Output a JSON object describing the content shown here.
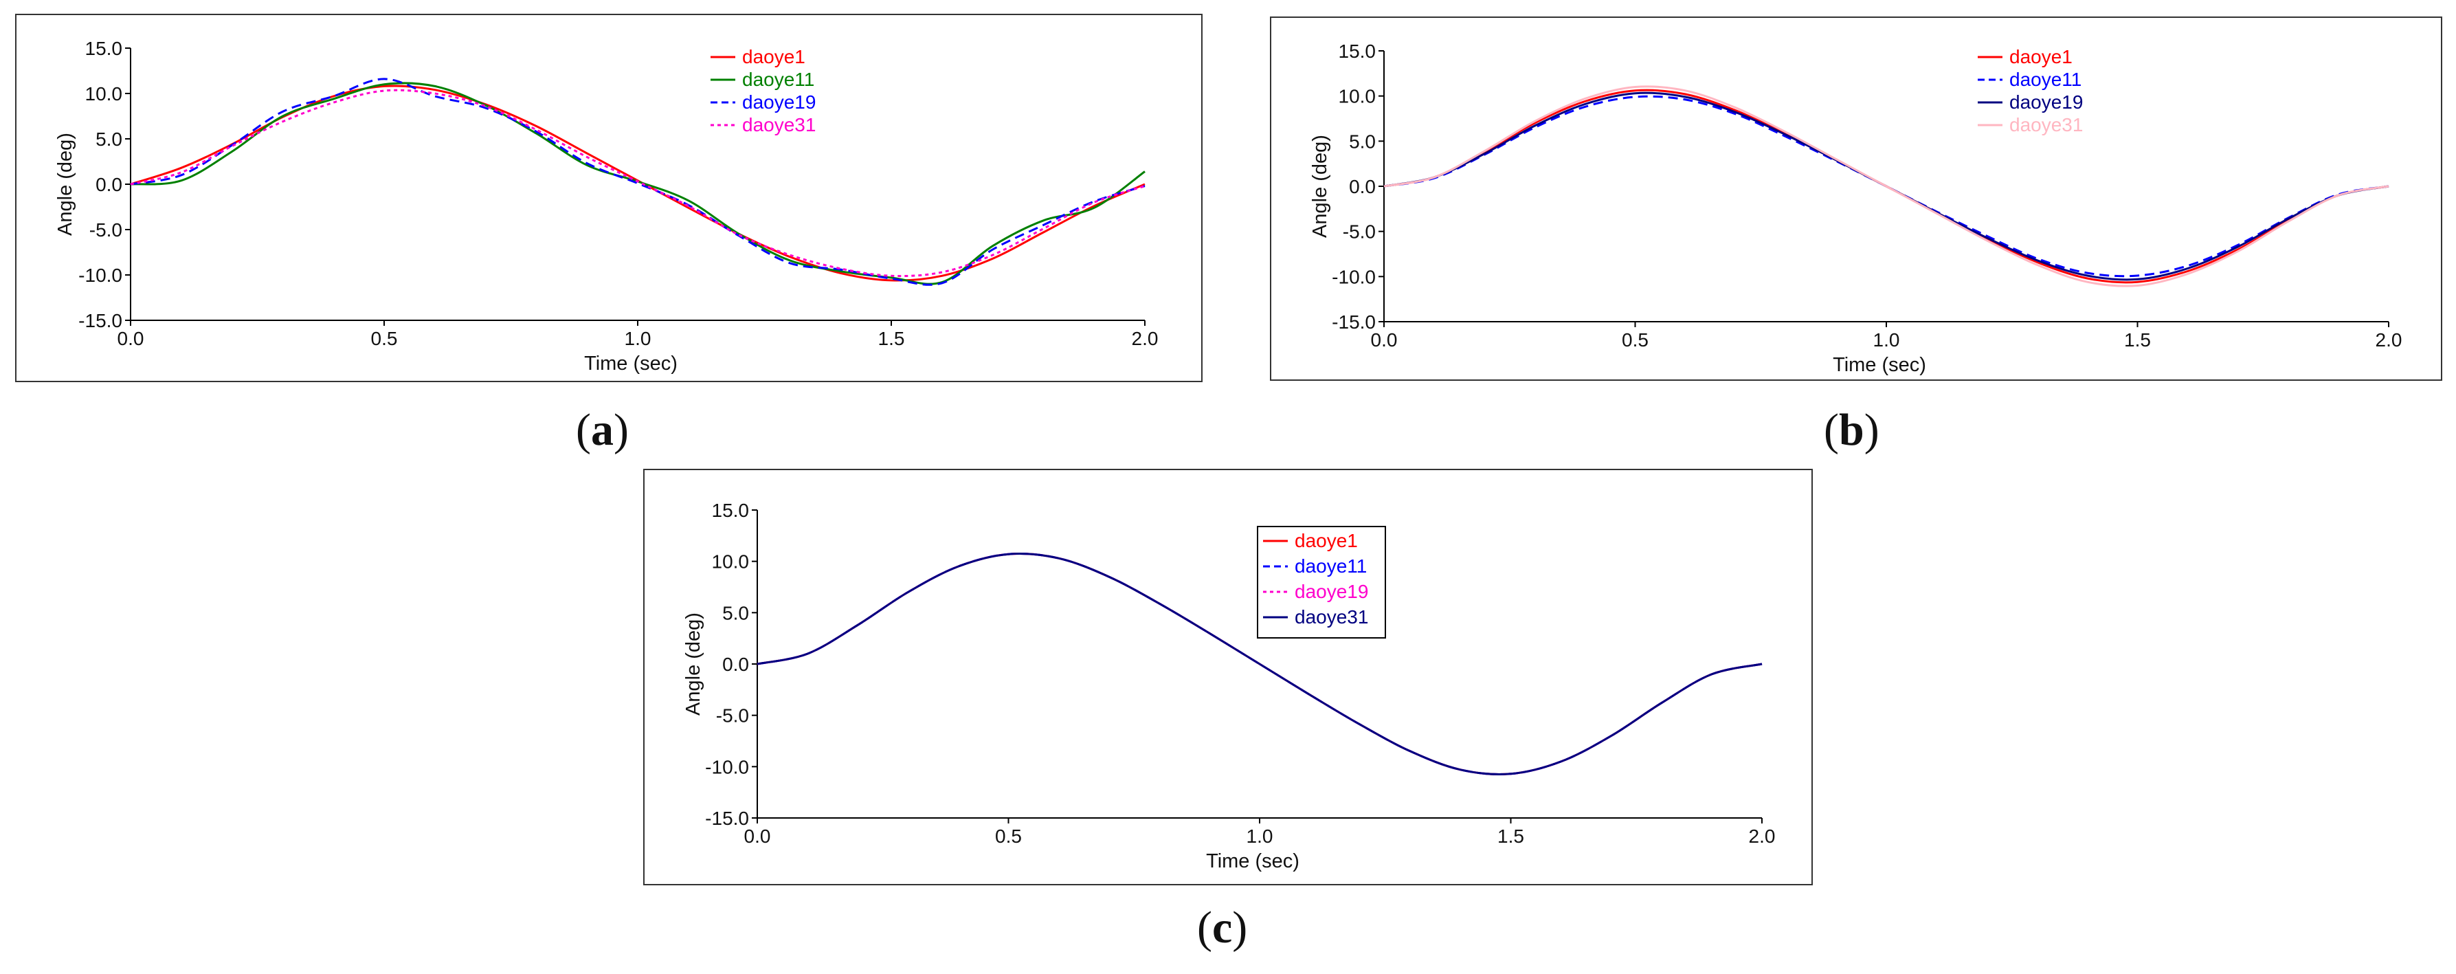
{
  "chart_data": [
    {
      "id": "a",
      "type": "line",
      "caption_label": "a",
      "xlabel": "Time (sec)",
      "ylabel": "Angle (deg)",
      "xlim": [
        0,
        2
      ],
      "ylim": [
        -15,
        15
      ],
      "x_ticks": [
        "0.0",
        "0.5",
        "1.0",
        "1.5",
        "2.0"
      ],
      "y_ticks": [
        "15.0",
        "10.0",
        "5.0",
        "0.0",
        "-5.0",
        "-10.0",
        "-15.0"
      ],
      "legend_boxed": false,
      "x": [
        0.0,
        0.1,
        0.2,
        0.3,
        0.4,
        0.5,
        0.6,
        0.7,
        0.8,
        0.9,
        1.0,
        1.1,
        1.2,
        1.3,
        1.4,
        1.5,
        1.6,
        1.7,
        1.8,
        1.9,
        2.0
      ],
      "series": [
        {
          "name": "daoye1",
          "color": "#ff0000",
          "dash": "solid",
          "values": [
            0.0,
            1.8,
            4.4,
            7.4,
            9.7,
            10.8,
            10.4,
            8.8,
            6.4,
            3.4,
            0.4,
            -2.6,
            -5.5,
            -8.0,
            -9.8,
            -10.6,
            -10.1,
            -8.2,
            -5.3,
            -2.4,
            0.0
          ]
        },
        {
          "name": "daoye11",
          "color": "#008000",
          "dash": "solid",
          "values": [
            0.0,
            0.4,
            3.6,
            7.5,
            9.4,
            11.0,
            10.8,
            8.7,
            5.6,
            2.1,
            0.3,
            -1.8,
            -5.5,
            -8.4,
            -9.6,
            -10.3,
            -10.8,
            -6.8,
            -4.0,
            -2.6,
            1.4
          ]
        },
        {
          "name": "daoye19",
          "color": "#0000ff",
          "dash": "dash",
          "values": [
            0.0,
            1.0,
            4.3,
            8.0,
            9.7,
            11.6,
            9.7,
            8.4,
            5.8,
            2.3,
            0.1,
            -2.3,
            -5.7,
            -8.7,
            -9.4,
            -10.4,
            -10.9,
            -7.2,
            -4.5,
            -1.9,
            -0.2
          ]
        },
        {
          "name": "daoye31",
          "color": "#ff00cc",
          "dash": "dot",
          "values": [
            0.0,
            1.3,
            4.2,
            6.9,
            9.0,
            10.3,
            10.0,
            8.6,
            6.0,
            3.0,
            0.3,
            -2.4,
            -5.6,
            -7.8,
            -9.3,
            -10.1,
            -9.7,
            -7.8,
            -4.9,
            -2.0,
            -0.2
          ]
        }
      ]
    },
    {
      "id": "b",
      "type": "line",
      "caption_label": "b",
      "xlabel": "Time (sec)",
      "ylabel": "Angle (deg)",
      "xlim": [
        0,
        2
      ],
      "ylim": [
        -15,
        15
      ],
      "x_ticks": [
        "0.0",
        "0.5",
        "1.0",
        "1.5",
        "2.0"
      ],
      "y_ticks": [
        "15.0",
        "10.0",
        "5.0",
        "0.0",
        "-5.0",
        "-10.0",
        "-15.0"
      ],
      "legend_boxed": false,
      "x": [
        0.0,
        0.1,
        0.2,
        0.3,
        0.4,
        0.5,
        0.6,
        0.7,
        0.8,
        0.9,
        1.0,
        1.1,
        1.2,
        1.3,
        1.4,
        1.5,
        1.6,
        1.7,
        1.8,
        1.9,
        2.0
      ],
      "series": [
        {
          "name": "daoye1",
          "color": "#ff0000",
          "dash": "solid",
          "values": [
            0.0,
            1.0,
            3.8,
            7.0,
            9.4,
            10.6,
            10.2,
            8.4,
            5.8,
            2.9,
            0.0,
            -2.9,
            -5.8,
            -8.4,
            -10.2,
            -10.6,
            -9.4,
            -7.0,
            -3.8,
            -1.0,
            0.0
          ]
        },
        {
          "name": "daoye11",
          "color": "#0000ff",
          "dash": "dash",
          "values": [
            0.0,
            0.9,
            3.5,
            6.5,
            8.8,
            9.9,
            9.6,
            8.0,
            5.5,
            2.8,
            0.0,
            -2.8,
            -5.5,
            -8.0,
            -9.6,
            -9.9,
            -8.8,
            -6.5,
            -3.5,
            -0.9,
            0.0
          ]
        },
        {
          "name": "daoye19",
          "color": "#000080",
          "dash": "solid",
          "values": [
            0.0,
            1.0,
            3.6,
            6.7,
            9.1,
            10.3,
            9.9,
            8.2,
            5.7,
            2.9,
            0.0,
            -2.9,
            -5.7,
            -8.2,
            -9.9,
            -10.3,
            -9.1,
            -6.7,
            -3.6,
            -1.0,
            0.0
          ]
        },
        {
          "name": "daoye31",
          "color": "#ffb6c1",
          "dash": "solid",
          "values": [
            0.0,
            1.0,
            3.9,
            7.2,
            9.7,
            11.0,
            10.6,
            8.7,
            6.0,
            3.0,
            0.0,
            -3.0,
            -6.0,
            -8.7,
            -10.6,
            -11.0,
            -9.7,
            -7.2,
            -3.9,
            -1.0,
            0.0
          ]
        }
      ]
    },
    {
      "id": "c",
      "type": "line",
      "caption_label": "c",
      "xlabel": "Time (sec)",
      "ylabel": "Angle (deg)",
      "xlim": [
        0,
        2
      ],
      "ylim": [
        -15,
        15
      ],
      "x_ticks": [
        "0.0",
        "0.5",
        "1.0",
        "1.5",
        "2.0"
      ],
      "y_ticks": [
        "15.0",
        "10.0",
        "5.0",
        "0.0",
        "-5.0",
        "-10.0",
        "-15.0"
      ],
      "legend_boxed": true,
      "x": [
        0.0,
        0.1,
        0.2,
        0.3,
        0.4,
        0.5,
        0.6,
        0.7,
        0.8,
        0.9,
        1.0,
        1.1,
        1.2,
        1.3,
        1.4,
        1.5,
        1.6,
        1.7,
        1.8,
        1.9,
        2.0
      ],
      "series": [
        {
          "name": "daoye1",
          "color": "#ff0000",
          "dash": "solid",
          "values": [
            0.0,
            1.0,
            3.8,
            7.0,
            9.5,
            10.7,
            10.3,
            8.5,
            5.9,
            3.0,
            0.0,
            -3.0,
            -5.9,
            -8.5,
            -10.3,
            -10.7,
            -9.5,
            -7.0,
            -3.8,
            -1.0,
            0.0
          ]
        },
        {
          "name": "daoye11",
          "color": "#0000ff",
          "dash": "dash",
          "values": [
            0.0,
            1.0,
            3.8,
            7.0,
            9.5,
            10.7,
            10.3,
            8.5,
            5.9,
            3.0,
            0.0,
            -3.0,
            -5.9,
            -8.5,
            -10.3,
            -10.7,
            -9.5,
            -7.0,
            -3.8,
            -1.0,
            0.0
          ]
        },
        {
          "name": "daoye19",
          "color": "#ff00cc",
          "dash": "dot",
          "values": [
            0.0,
            1.0,
            3.8,
            7.0,
            9.5,
            10.7,
            10.3,
            8.5,
            5.9,
            3.0,
            0.0,
            -3.0,
            -5.9,
            -8.5,
            -10.3,
            -10.7,
            -9.5,
            -7.0,
            -3.8,
            -1.0,
            0.0
          ]
        },
        {
          "name": "daoye31",
          "color": "#000080",
          "dash": "solid",
          "values": [
            0.0,
            1.0,
            3.8,
            7.0,
            9.5,
            10.7,
            10.3,
            8.5,
            5.9,
            3.0,
            0.0,
            -3.0,
            -5.9,
            -8.5,
            -10.3,
            -10.7,
            -9.5,
            -7.0,
            -3.8,
            -1.0,
            0.0
          ]
        }
      ]
    }
  ]
}
